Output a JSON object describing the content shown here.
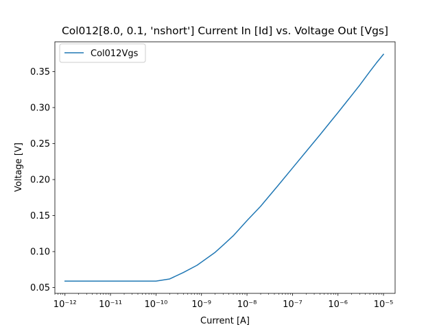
{
  "chart_data": {
    "type": "line",
    "title": "Col012[8.0, 0.1, 'nshort'] Current In [Id] vs. Voltage Out [Vgs]",
    "xlabel": "Current [A]",
    "ylabel": "Voltage [V]",
    "xscale": "log",
    "xlim": [
      6e-13,
      1.8e-05
    ],
    "ylim": [
      0.042,
      0.3913
    ],
    "xticks": [
      {
        "value": 1e-12,
        "label": "10⁻¹²"
      },
      {
        "value": 1e-11,
        "label": "10⁻¹¹"
      },
      {
        "value": 1e-10,
        "label": "10⁻¹⁰"
      },
      {
        "value": 1e-09,
        "label": "10⁻⁹"
      },
      {
        "value": 1e-08,
        "label": "10⁻⁸"
      },
      {
        "value": 1e-07,
        "label": "10⁻⁷"
      },
      {
        "value": 1e-06,
        "label": "10⁻⁶"
      },
      {
        "value": 1e-05,
        "label": "10⁻⁵"
      }
    ],
    "yticks": [
      {
        "value": 0.05,
        "label": "0.05"
      },
      {
        "value": 0.1,
        "label": "0.10"
      },
      {
        "value": 0.15,
        "label": "0.15"
      },
      {
        "value": 0.2,
        "label": "0.20"
      },
      {
        "value": 0.25,
        "label": "0.25"
      },
      {
        "value": 0.3,
        "label": "0.30"
      },
      {
        "value": 0.35,
        "label": "0.35"
      }
    ],
    "grid": false,
    "legend": "upper left",
    "series": [
      {
        "name": "Col012Vgs",
        "color": "#1f77b4",
        "x": [
          1e-12,
          3e-12,
          1e-11,
          3e-11,
          1e-10,
          2e-10,
          4e-10,
          8e-10,
          2e-09,
          3e-09,
          5e-09,
          1e-08,
          2e-08,
          5e-08,
          1e-07,
          2e-07,
          4e-07,
          7e-07,
          1e-06,
          3e-06,
          5e-06,
          7e-06,
          1e-05
        ],
        "y": [
          0.059,
          0.059,
          0.059,
          0.059,
          0.059,
          0.062,
          0.071,
          0.081,
          0.099,
          0.109,
          0.122,
          0.143,
          0.163,
          0.193,
          0.216,
          0.239,
          0.262,
          0.281,
          0.293,
          0.331,
          0.35,
          0.362,
          0.374
        ]
      }
    ]
  }
}
